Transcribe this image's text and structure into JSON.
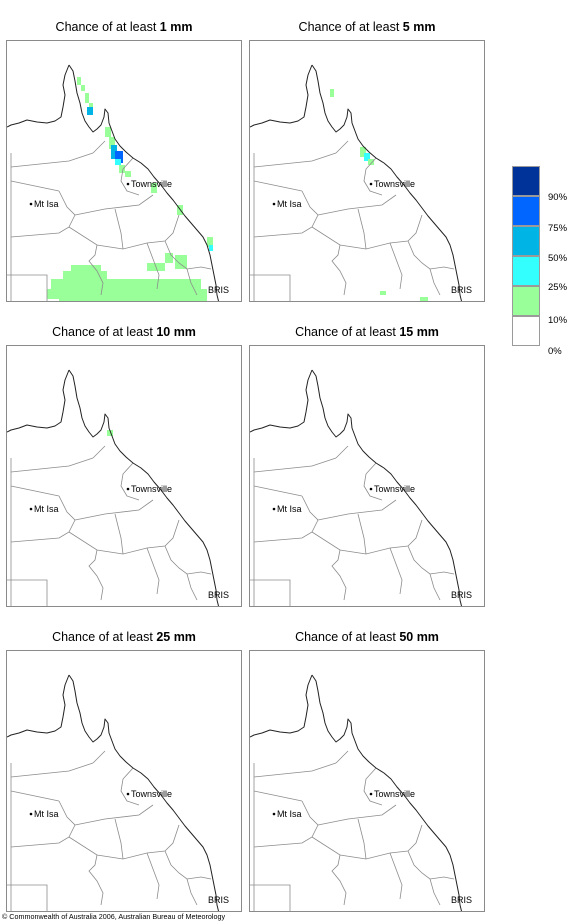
{
  "panels": [
    {
      "title_prefix": "Chance of at least ",
      "amount": "1 mm"
    },
    {
      "title_prefix": "Chance of at least ",
      "amount": "5 mm"
    },
    {
      "title_prefix": "Chance of at least ",
      "amount": "10 mm"
    },
    {
      "title_prefix": "Chance of at least ",
      "amount": "15 mm"
    },
    {
      "title_prefix": "Chance of at least ",
      "amount": "25 mm"
    },
    {
      "title_prefix": "Chance of at least ",
      "amount": "50 mm"
    }
  ],
  "map_labels": {
    "townsville": "Townsville",
    "mt_isa": "Mt Isa",
    "brisbane": "BRIS"
  },
  "legend": {
    "labels": [
      "90%",
      "75%",
      "50%",
      "25%",
      "10%",
      "0%"
    ],
    "colors": [
      "#003399",
      "#0066ff",
      "#00b4e6",
      "#33ffff",
      "#99ff99",
      "#ffffff"
    ]
  },
  "copyright": "© Commonwealth of Australia 2006, Australian Bureau of Meteorology"
}
